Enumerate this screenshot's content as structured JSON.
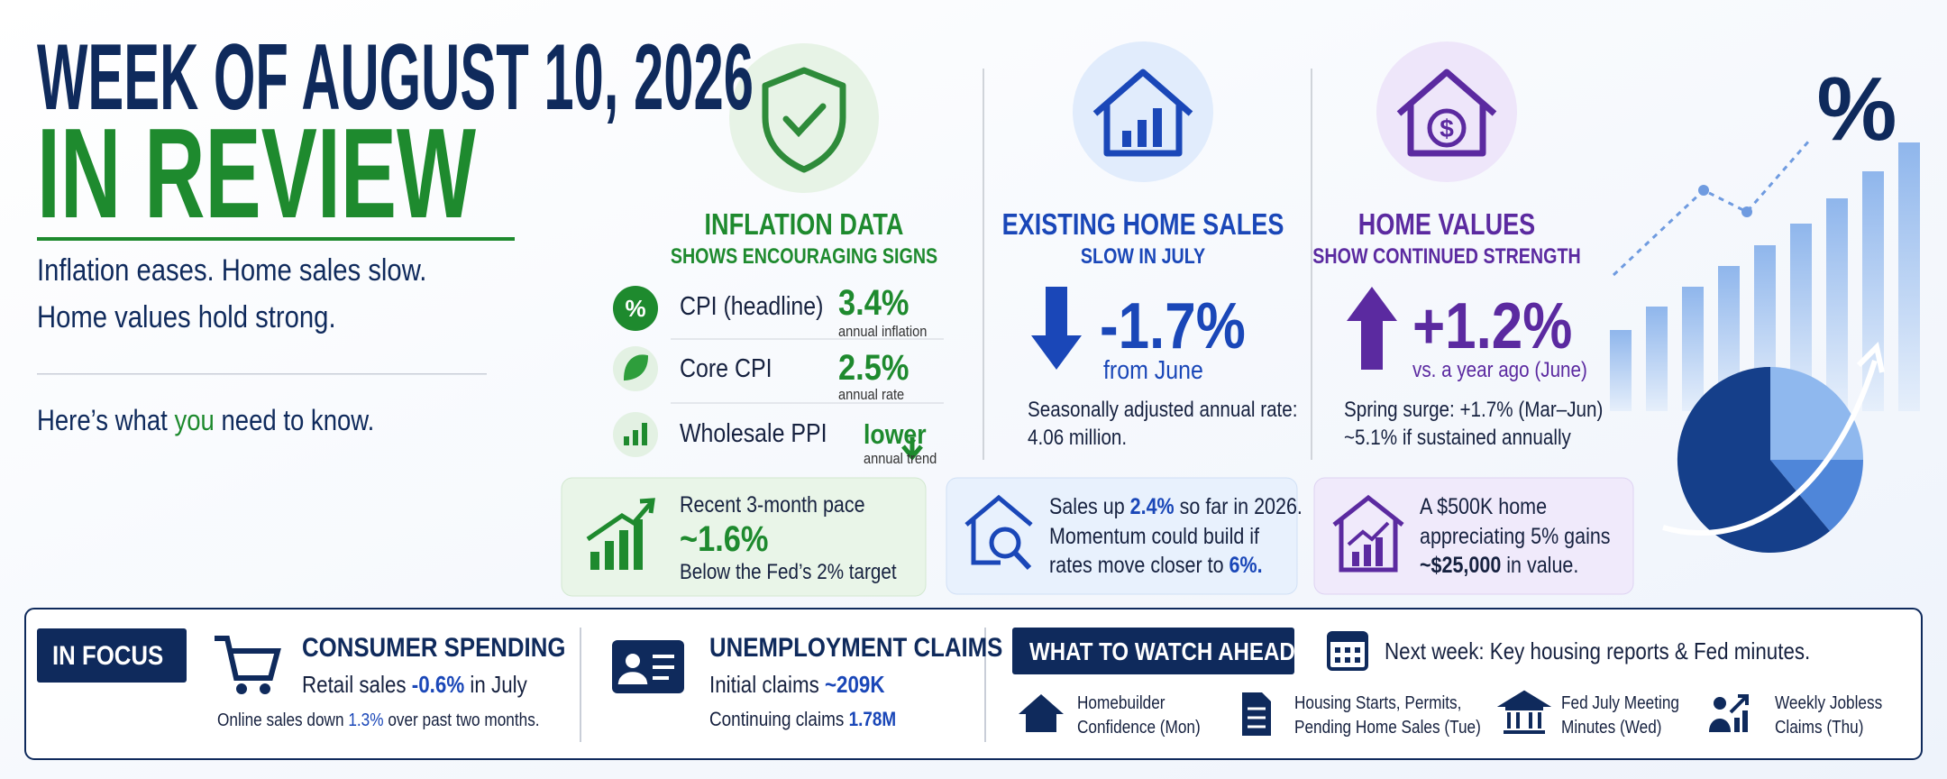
{
  "header": {
    "title_week": "WEEK OF AUGUST 10, 2026",
    "title_review": "IN REVIEW",
    "summary": [
      "Inflation eases. Home sales slow.",
      "Home values hold strong."
    ],
    "prompt": [
      "Here’s what ",
      "you",
      " need to know."
    ]
  },
  "inflation": {
    "title": "INFLATION DATA",
    "subtitle": "SHOWS ENCOURAGING SIGNS",
    "rows": [
      {
        "symbol": "%",
        "label": "CPI (headline)",
        "value": "3.4%",
        "note": "annual inflation"
      },
      {
        "label": "Core CPI",
        "value": "2.5%",
        "note": "annual rate"
      },
      {
        "label": "Wholesale PPI",
        "value": "lower",
        "note": "annual trend"
      }
    ],
    "callout": {
      "line1": "Recent 3-month pace",
      "value": "~1.6%",
      "line3": "Below the Fed’s 2% target"
    }
  },
  "home_sales": {
    "title": "EXISTING HOME SALES",
    "subtitle": "SLOW IN JULY",
    "value": "-1.7%",
    "value_note": "from June",
    "detail": [
      "Seasonally adjusted annual rate:",
      "4.06 million."
    ],
    "callout": [
      [
        "Sales up ",
        "2.4%",
        " so far in 2026."
      ],
      [
        "Momentum could build if"
      ],
      [
        "rates move closer to ",
        "6%."
      ]
    ]
  },
  "home_values": {
    "symbol": "$",
    "title": "HOME VALUES",
    "subtitle": "SHOW CONTINUED STRENGTH",
    "value": "+1.2%",
    "value_note": "vs. a year ago (June)",
    "detail": [
      [
        "Spring surge: ",
        "+1.7%",
        " (Mar–Jun)"
      ],
      [
        "~5.1%",
        " if sustained annually"
      ]
    ],
    "callout": [
      [
        "A $500K home"
      ],
      [
        "appreciating 5% gains"
      ],
      [
        "~$25,000",
        " in value."
      ]
    ]
  },
  "decor_symbol": "%",
  "focus": {
    "badge": "IN FOCUS",
    "consumer": {
      "title": "CONSUMER SPENDING",
      "line1": [
        "Retail sales ",
        "-0.6%",
        " in July"
      ],
      "line2": [
        "Online sales down ",
        "1.3%",
        " over past two months."
      ]
    },
    "unemployment": {
      "title": "UNEMPLOYMENT CLAIMS",
      "line1": [
        "Initial claims ",
        "~209K"
      ],
      "line2": [
        "Continuing claims ",
        "1.78M"
      ]
    }
  },
  "watch": {
    "badge": "WHAT TO WATCH AHEAD",
    "next": "Next week: Key housing reports & Fed minutes.",
    "items": [
      [
        "Homebuilder",
        "Confidence (Mon)"
      ],
      [
        "Housing Starts, Permits,",
        "Pending Home Sales (Tue)"
      ],
      [
        "Fed July Meeting",
        "Minutes (Wed)"
      ],
      [
        "Weekly Jobless",
        "Claims (Thu)"
      ]
    ]
  }
}
